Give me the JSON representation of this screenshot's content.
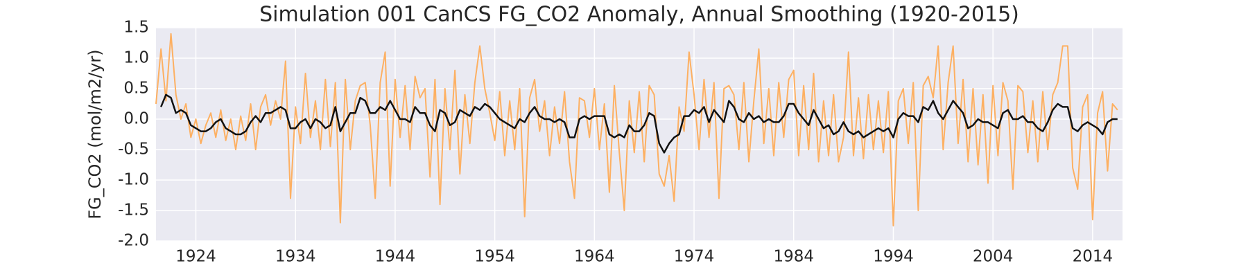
{
  "chart_data": {
    "type": "line",
    "title": "Simulation 001 CanCS FG_CO2 Anomaly, Annual Smoothing (1920-2015)",
    "ylabel": "FG_CO2 (mol/m2/yr)",
    "xlim": [
      1920,
      2017
    ],
    "xticks": [
      1924,
      1934,
      1944,
      1954,
      1964,
      1974,
      1984,
      1994,
      2004,
      2014
    ],
    "ylim": [
      -2,
      1.5
    ],
    "yticks": [
      {
        "value": -2,
        "label": "-2.0"
      },
      -1.5,
      {
        "value": -1,
        "label": "-1.0"
      },
      -0.5,
      {
        "value": 0,
        "label": "0.0"
      },
      0.5,
      {
        "value": 1,
        "label": "1.0"
      },
      1.5
    ],
    "grid": true,
    "background": "#eaeaf2",
    "x": [
      1920,
      1920.5,
      1921,
      1921.5,
      1922,
      1922.5,
      1923,
      1923.5,
      1924,
      1924.5,
      1925,
      1925.5,
      1926,
      1926.5,
      1927,
      1927.5,
      1928,
      1928.5,
      1929,
      1929.5,
      1930,
      1930.5,
      1931,
      1931.5,
      1932,
      1932.5,
      1933,
      1933.5,
      1934,
      1934.5,
      1935,
      1935.5,
      1936,
      1936.5,
      1937,
      1937.5,
      1938,
      1938.5,
      1939,
      1939.5,
      1940,
      1940.5,
      1941,
      1941.5,
      1942,
      1942.5,
      1943,
      1943.5,
      1944,
      1944.5,
      1945,
      1945.5,
      1946,
      1946.5,
      1947,
      1947.5,
      1948,
      1948.5,
      1949,
      1949.5,
      1950,
      1950.5,
      1951,
      1951.5,
      1952,
      1952.5,
      1953,
      1953.5,
      1954,
      1954.5,
      1955,
      1955.5,
      1956,
      1956.5,
      1957,
      1957.5,
      1958,
      1958.5,
      1959,
      1959.5,
      1960,
      1960.5,
      1961,
      1961.5,
      1962,
      1962.5,
      1963,
      1963.5,
      1964,
      1964.5,
      1965,
      1965.5,
      1966,
      1966.5,
      1967,
      1967.5,
      1968,
      1968.5,
      1969,
      1969.5,
      1970,
      1970.5,
      1971,
      1971.5,
      1972,
      1972.5,
      1973,
      1973.5,
      1974,
      1974.5,
      1975,
      1975.5,
      1976,
      1976.5,
      1977,
      1977.5,
      1978,
      1978.5,
      1979,
      1979.5,
      1980,
      1980.5,
      1981,
      1981.5,
      1982,
      1982.5,
      1983,
      1983.5,
      1984,
      1984.5,
      1985,
      1985.5,
      1986,
      1986.5,
      1987,
      1987.5,
      1988,
      1988.5,
      1989,
      1989.5,
      1990,
      1990.5,
      1991,
      1991.5,
      1992,
      1992.5,
      1993,
      1993.5,
      1994,
      1994.5,
      1995,
      1995.5,
      1996,
      1996.5,
      1997,
      1997.5,
      1998,
      1998.5,
      1999,
      1999.5,
      2000,
      2000.5,
      2001,
      2001.5,
      2002,
      2002.5,
      2003,
      2003.5,
      2004,
      2004.5,
      2005,
      2005.5,
      2006,
      2006.5,
      2007,
      2007.5,
      2008,
      2008.5,
      2009,
      2009.5,
      2010,
      2010.5,
      2011,
      2011.5,
      2012,
      2012.5,
      2013,
      2013.5,
      2014,
      2014.5,
      2015,
      2015.5,
      2016,
      2016.5
    ],
    "series": [
      {
        "color": "#fdb062",
        "width": 2,
        "values": [
          0.25,
          1.15,
          0.3,
          1.4,
          0.4,
          0.0,
          0.25,
          -0.3,
          0.0,
          -0.4,
          -0.1,
          0.1,
          -0.3,
          0.15,
          -0.35,
          0.0,
          -0.5,
          0.05,
          -0.35,
          0.25,
          -0.5,
          0.2,
          0.4,
          -0.1,
          0.3,
          0.0,
          0.95,
          -1.3,
          0.2,
          -0.4,
          0.75,
          -0.3,
          0.3,
          -0.5,
          0.65,
          -0.45,
          0.6,
          -1.7,
          0.65,
          -0.5,
          0.3,
          0.55,
          0.6,
          -0.1,
          -1.3,
          0.6,
          1.1,
          -1.1,
          0.65,
          -0.3,
          0.55,
          -0.5,
          0.7,
          0.35,
          0.5,
          -0.95,
          0.65,
          -1.4,
          0.5,
          -0.5,
          0.8,
          -0.9,
          0.4,
          -0.4,
          0.6,
          1.2,
          0.5,
          0.1,
          -0.35,
          0.45,
          -0.6,
          0.3,
          -0.5,
          0.5,
          -1.6,
          0.35,
          0.65,
          -0.2,
          0.3,
          -0.6,
          0.2,
          -0.4,
          0.45,
          -0.7,
          -1.3,
          0.35,
          0.3,
          -0.3,
          0.5,
          -0.5,
          0.25,
          -1.2,
          0.55,
          -0.55,
          -1.5,
          0.3,
          -0.55,
          0.45,
          -0.7,
          0.55,
          0.4,
          -0.9,
          -1.1,
          -0.6,
          -1.35,
          0.2,
          -0.2,
          1.1,
          0.4,
          -0.5,
          0.65,
          -0.3,
          0.6,
          -1.3,
          0.5,
          0.55,
          0.4,
          -0.5,
          0.6,
          -0.7,
          0.3,
          1.15,
          -0.4,
          0.5,
          -0.6,
          0.6,
          -0.3,
          0.65,
          0.8,
          -0.6,
          0.55,
          -0.5,
          0.75,
          -0.7,
          0.3,
          -0.6,
          0.4,
          -0.7,
          -0.3,
          1.1,
          -0.6,
          0.35,
          -0.65,
          0.4,
          -0.5,
          0.3,
          -0.55,
          0.45,
          -1.75,
          0.3,
          0.5,
          -0.4,
          0.6,
          -1.5,
          0.55,
          0.7,
          0.35,
          1.2,
          -0.5,
          0.6,
          1.2,
          -0.4,
          0.65,
          -0.7,
          0.5,
          -0.75,
          0.4,
          -1.05,
          0.55,
          -0.6,
          0.6,
          0.3,
          -1.15,
          0.55,
          0.45,
          -0.55,
          0.3,
          -0.7,
          0.45,
          -0.5,
          0.4,
          0.6,
          1.2,
          1.2,
          -0.8,
          -1.15,
          0.2,
          0.4,
          -1.65,
          0.1,
          0.45,
          -0.85,
          0.25,
          0.15
        ]
      },
      {
        "color": "#111111",
        "width": 2.5,
        "values": [
          null,
          0.2,
          0.4,
          0.35,
          0.1,
          0.15,
          0.1,
          -0.1,
          -0.15,
          -0.2,
          -0.2,
          -0.15,
          -0.05,
          0.0,
          -0.15,
          -0.2,
          -0.25,
          -0.25,
          -0.2,
          -0.05,
          0.05,
          -0.05,
          0.1,
          0.1,
          0.15,
          0.2,
          0.15,
          -0.15,
          -0.15,
          -0.05,
          0.0,
          -0.15,
          0.0,
          -0.05,
          -0.15,
          -0.1,
          0.2,
          -0.2,
          -0.05,
          0.1,
          0.1,
          0.35,
          0.3,
          0.1,
          0.1,
          0.2,
          0.15,
          0.3,
          0.15,
          0.0,
          0.0,
          -0.05,
          0.2,
          0.1,
          0.1,
          -0.1,
          -0.2,
          0.15,
          0.1,
          -0.1,
          -0.05,
          0.15,
          0.1,
          0.05,
          0.2,
          0.15,
          0.25,
          0.2,
          0.1,
          0.0,
          -0.05,
          -0.1,
          -0.15,
          0.0,
          -0.05,
          0.1,
          0.2,
          0.05,
          0.0,
          0.0,
          -0.05,
          0.0,
          -0.05,
          -0.3,
          -0.3,
          0.0,
          0.05,
          0.0,
          0.05,
          0.05,
          0.05,
          -0.25,
          -0.3,
          -0.25,
          -0.3,
          -0.1,
          -0.2,
          -0.2,
          -0.1,
          0.1,
          0.05,
          -0.4,
          -0.55,
          -0.4,
          -0.3,
          -0.25,
          0.05,
          0.05,
          0.15,
          0.1,
          0.2,
          -0.05,
          0.15,
          0.05,
          -0.05,
          0.3,
          0.2,
          0.0,
          -0.05,
          0.1,
          0.0,
          0.05,
          -0.05,
          0.0,
          -0.05,
          -0.05,
          0.05,
          0.25,
          0.25,
          0.1,
          0.0,
          -0.1,
          0.15,
          0.0,
          -0.15,
          -0.1,
          -0.25,
          -0.2,
          -0.05,
          -0.2,
          -0.25,
          -0.2,
          -0.3,
          -0.25,
          -0.2,
          -0.15,
          -0.2,
          -0.15,
          -0.3,
          0.0,
          0.1,
          0.05,
          0.05,
          -0.05,
          0.2,
          0.15,
          0.3,
          0.1,
          0.0,
          0.15,
          0.3,
          0.2,
          0.1,
          -0.15,
          -0.1,
          0.0,
          -0.05,
          -0.05,
          -0.1,
          -0.15,
          0.1,
          0.15,
          0.0,
          0.0,
          0.05,
          -0.05,
          -0.05,
          -0.15,
          -0.2,
          -0.05,
          0.15,
          0.25,
          0.2,
          0.2,
          -0.15,
          -0.2,
          -0.1,
          -0.05,
          -0.1,
          -0.15,
          -0.25,
          -0.05,
          0.0,
          0.0
        ]
      }
    ]
  }
}
